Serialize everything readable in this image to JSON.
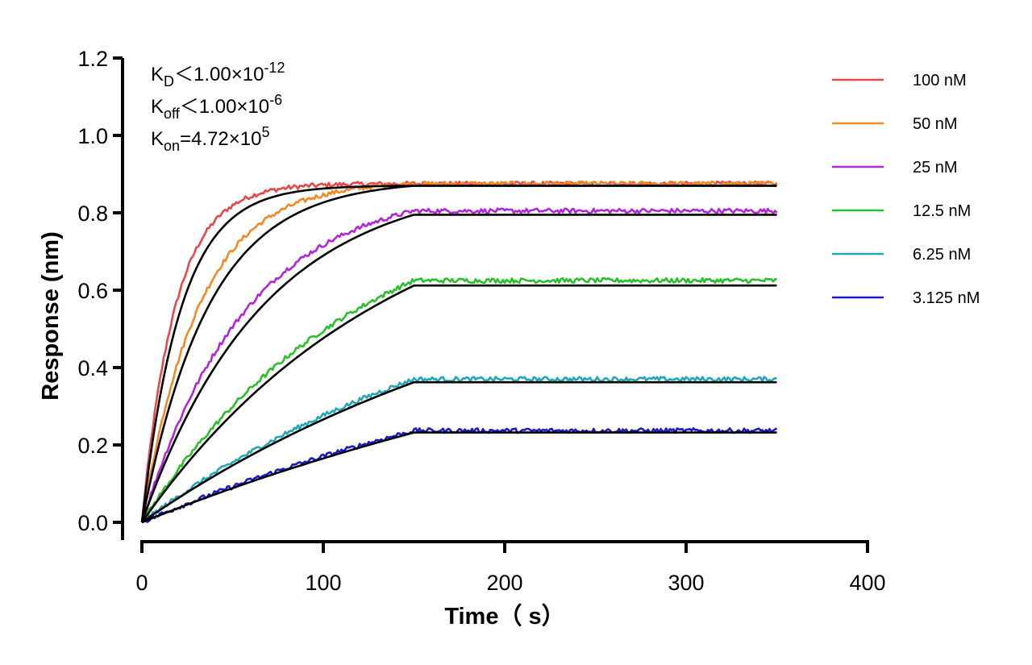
{
  "chart_data": {
    "type": "line",
    "xlabel": "Time（ s）",
    "ylabel": "Response (nm)",
    "xlim": [
      0,
      400
    ],
    "ylim": [
      -0.05,
      1.2
    ],
    "xticks": [
      0,
      100,
      200,
      300,
      400
    ],
    "yticks": [
      0.0,
      0.2,
      0.4,
      0.6,
      0.8,
      1.0,
      1.2
    ],
    "xtick_labels": [
      "0",
      "100",
      "200",
      "300",
      "400"
    ],
    "ytick_labels": [
      "0.0",
      "0.2",
      "0.4",
      "0.6",
      "0.8",
      "1.0",
      "1.2"
    ],
    "grid": false,
    "legend_position": "top-right",
    "annotations": [
      {
        "base": "K",
        "sub": "D",
        "rel": "＜",
        "value": "1.00×10",
        "exp": "-12"
      },
      {
        "base": "K",
        "sub": "off",
        "rel": "＜",
        "value": "1.00×10",
        "exp": "-6"
      },
      {
        "base": "K",
        "sub": "on",
        "rel": "=",
        "value": "4.72×10",
        "exp": "5"
      }
    ],
    "association_end": 150,
    "end_time": 350,
    "series": [
      {
        "name": "100 nM",
        "color": "#e8484b",
        "plateau": 0.875,
        "fit_plateau": 0.87,
        "k": 0.055
      },
      {
        "name": "50 nM",
        "color": "#f08a24",
        "plateau": 0.875,
        "fit_plateau": 0.87,
        "k": 0.032
      },
      {
        "name": "25 nM",
        "color": "#b126d9",
        "plateau": 0.805,
        "fit_plateau": 0.795,
        "k": 0.0175
      },
      {
        "name": "12.5 nM",
        "color": "#2bbf2b",
        "plateau": 0.625,
        "fit_plateau": 0.612,
        "k": 0.0085
      },
      {
        "name": "6.25 nM",
        "color": "#23a6b6",
        "plateau": 0.37,
        "fit_plateau": 0.362,
        "k": 0.005
      },
      {
        "name": "3.125 nM",
        "color": "#1a1ac8",
        "plateau": 0.237,
        "fit_plateau": 0.232,
        "k": 0.0033
      }
    ],
    "fit_color": "#000000"
  }
}
